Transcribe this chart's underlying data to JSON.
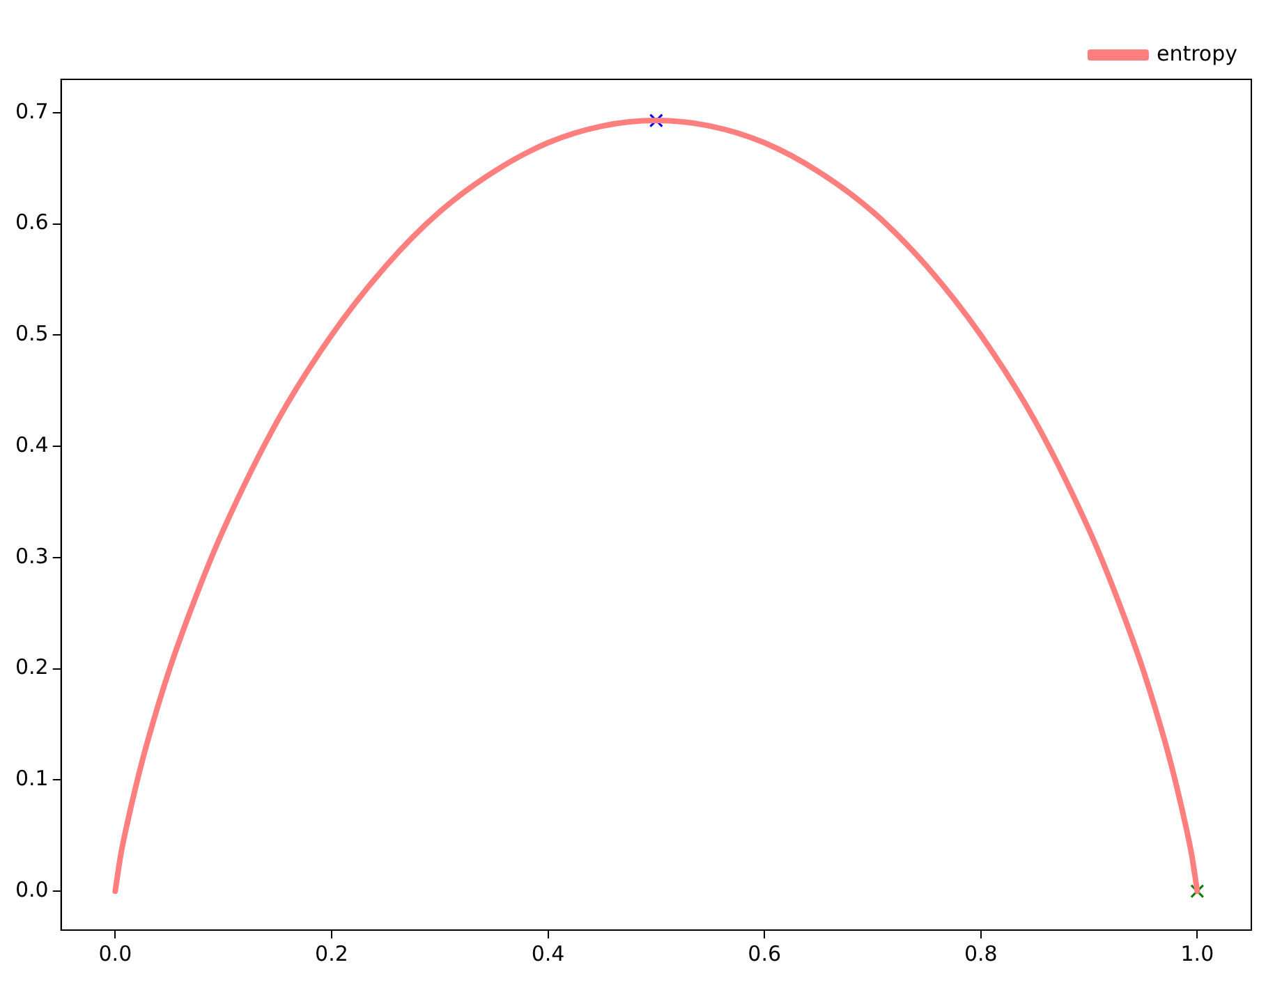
{
  "chart_data": {
    "type": "line",
    "xlim": [
      -0.05,
      1.05
    ],
    "ylim": [
      -0.035,
      0.73
    ],
    "xticks": [
      {
        "value": 0,
        "label": "0.0"
      },
      0.2,
      0.4,
      0.6,
      0.8,
      {
        "value": 1,
        "label": "1.0"
      }
    ],
    "yticks": [
      {
        "value": 0,
        "label": "0.0"
      },
      0.1,
      0.2,
      0.3,
      0.4,
      0.5,
      0.6,
      0.7
    ],
    "grid": false,
    "legend": "top right",
    "series": [
      {
        "name": "entropy",
        "color": "#ff7f7f",
        "marker": "none",
        "x": [
          0,
          0.005,
          0.01,
          0.02,
          0.03,
          0.05,
          0.075,
          0.1,
          0.15,
          0.2,
          0.25,
          0.3,
          0.35,
          0.4,
          0.45,
          0.5,
          0.55,
          0.6,
          0.65,
          0.7,
          0.75,
          0.8,
          0.85,
          0.9,
          0.925,
          0.95,
          0.97,
          0.98,
          0.99,
          0.995,
          1
        ],
        "values": [
          0,
          0.032,
          0.056,
          0.098,
          0.135,
          0.199,
          0.266,
          0.325,
          0.423,
          0.5,
          0.562,
          0.611,
          0.647,
          0.673,
          0.688,
          0.693,
          0.688,
          0.673,
          0.647,
          0.611,
          0.562,
          0.5,
          0.423,
          0.325,
          0.266,
          0.199,
          0.135,
          0.098,
          0.056,
          0.032,
          0
        ]
      },
      {
        "type": "scatter",
        "color": "#0000ff",
        "marker": "cross",
        "x": [
          0.5
        ],
        "values": [
          0.693
        ]
      },
      {
        "type": "scatter",
        "color": "#008000",
        "marker": "cross",
        "x": [
          1
        ],
        "values": [
          0
        ]
      }
    ]
  }
}
